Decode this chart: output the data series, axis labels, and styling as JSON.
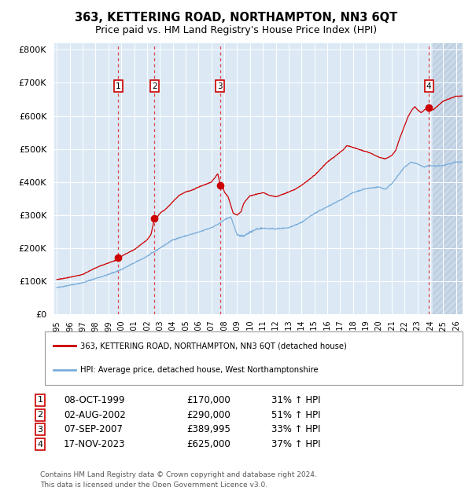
{
  "title": "363, KETTERING ROAD, NORTHAMPTON, NN3 6QT",
  "subtitle": "Price paid vs. HM Land Registry's House Price Index (HPI)",
  "ylim": [
    0,
    820000
  ],
  "yticks": [
    0,
    100000,
    200000,
    300000,
    400000,
    500000,
    600000,
    700000,
    800000
  ],
  "ytick_labels": [
    "£0",
    "£100K",
    "£200K",
    "£300K",
    "£400K",
    "£500K",
    "£600K",
    "£700K",
    "£800K"
  ],
  "background_color": "#dce9f5",
  "grid_color": "#ffffff",
  "red_line_color": "#cc0000",
  "blue_line_color": "#7aadda",
  "dashed_line_color": "#dd4444",
  "x_start_year": 1994.8,
  "x_end_year": 2026.5,
  "xticks": [
    1995,
    1996,
    1997,
    1998,
    1999,
    2000,
    2001,
    2002,
    2003,
    2004,
    2005,
    2006,
    2007,
    2008,
    2009,
    2010,
    2011,
    2012,
    2013,
    2014,
    2015,
    2016,
    2017,
    2018,
    2019,
    2020,
    2021,
    2022,
    2023,
    2024,
    2025,
    2026
  ],
  "sale_dates": [
    1999.77,
    2002.58,
    2007.68,
    2023.88
  ],
  "sale_prices": [
    170000,
    290000,
    389995,
    625000
  ],
  "sale_labels": [
    "1",
    "2",
    "3",
    "4"
  ],
  "legend_red_label": "363, KETTERING ROAD, NORTHAMPTON, NN3 6QT (detached house)",
  "legend_blue_label": "HPI: Average price, detached house, West Northamptonshire",
  "table_entries": [
    {
      "num": "1",
      "date": "08-OCT-1999",
      "price": "£170,000",
      "change": "31% ↑ HPI"
    },
    {
      "num": "2",
      "date": "02-AUG-2002",
      "price": "£290,000",
      "change": "51% ↑ HPI"
    },
    {
      "num": "3",
      "date": "07-SEP-2007",
      "price": "£389,995",
      "change": "33% ↑ HPI"
    },
    {
      "num": "4",
      "date": "17-NOV-2023",
      "price": "£625,000",
      "change": "37% ↑ HPI"
    }
  ],
  "footer_text": "Contains HM Land Registry data © Crown copyright and database right 2024.\nThis data is licensed under the Open Government Licence v3.0.",
  "future_hatch_start": 2024.17
}
